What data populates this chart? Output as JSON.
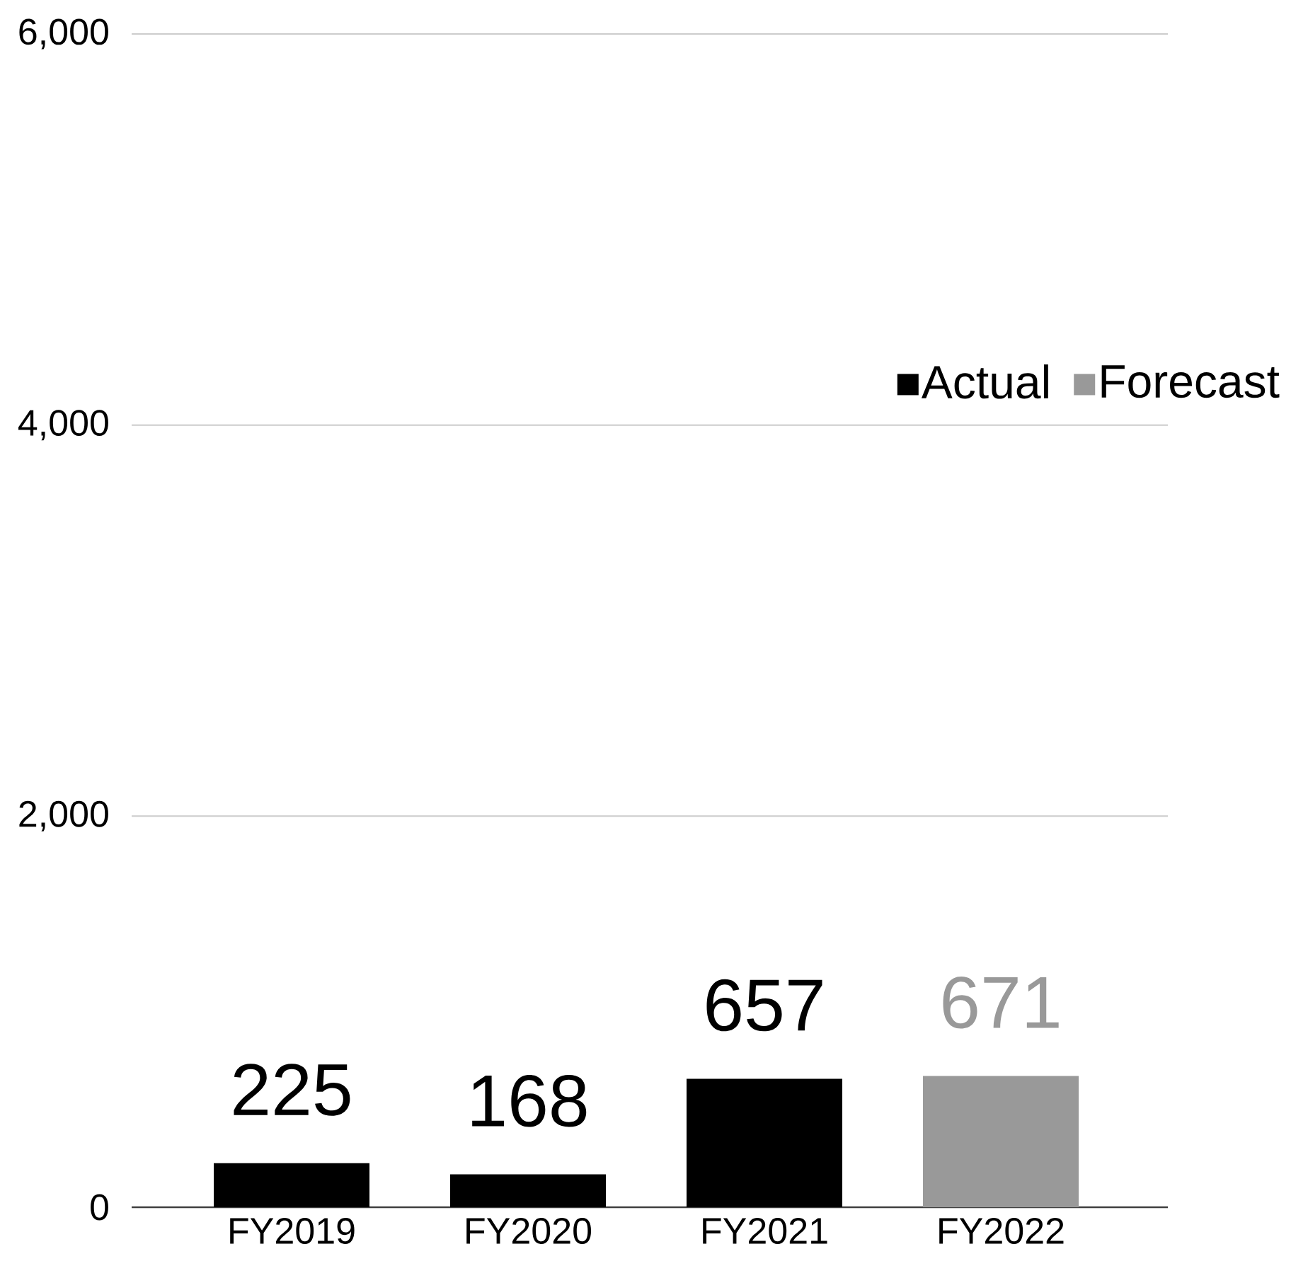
{
  "chart_data": {
    "type": "bar",
    "categories": [
      "FY2019",
      "FY2020",
      "FY2021",
      "FY2022"
    ],
    "series": [
      {
        "name": "Actual",
        "color": "#000000",
        "values": [
          225,
          168,
          657,
          null
        ]
      },
      {
        "name": "Forecast",
        "color": "#999999",
        "values": [
          null,
          null,
          null,
          671
        ]
      }
    ],
    "ylim": [
      0,
      6000
    ],
    "yticks": [
      {
        "value": 0,
        "label": "0"
      },
      {
        "value": 2000,
        "label": "2,000"
      },
      {
        "value": 4000,
        "label": "4,000"
      },
      {
        "value": 6000,
        "label": "6,000"
      }
    ],
    "grid": "y",
    "legend": "right",
    "data_labels": true
  }
}
